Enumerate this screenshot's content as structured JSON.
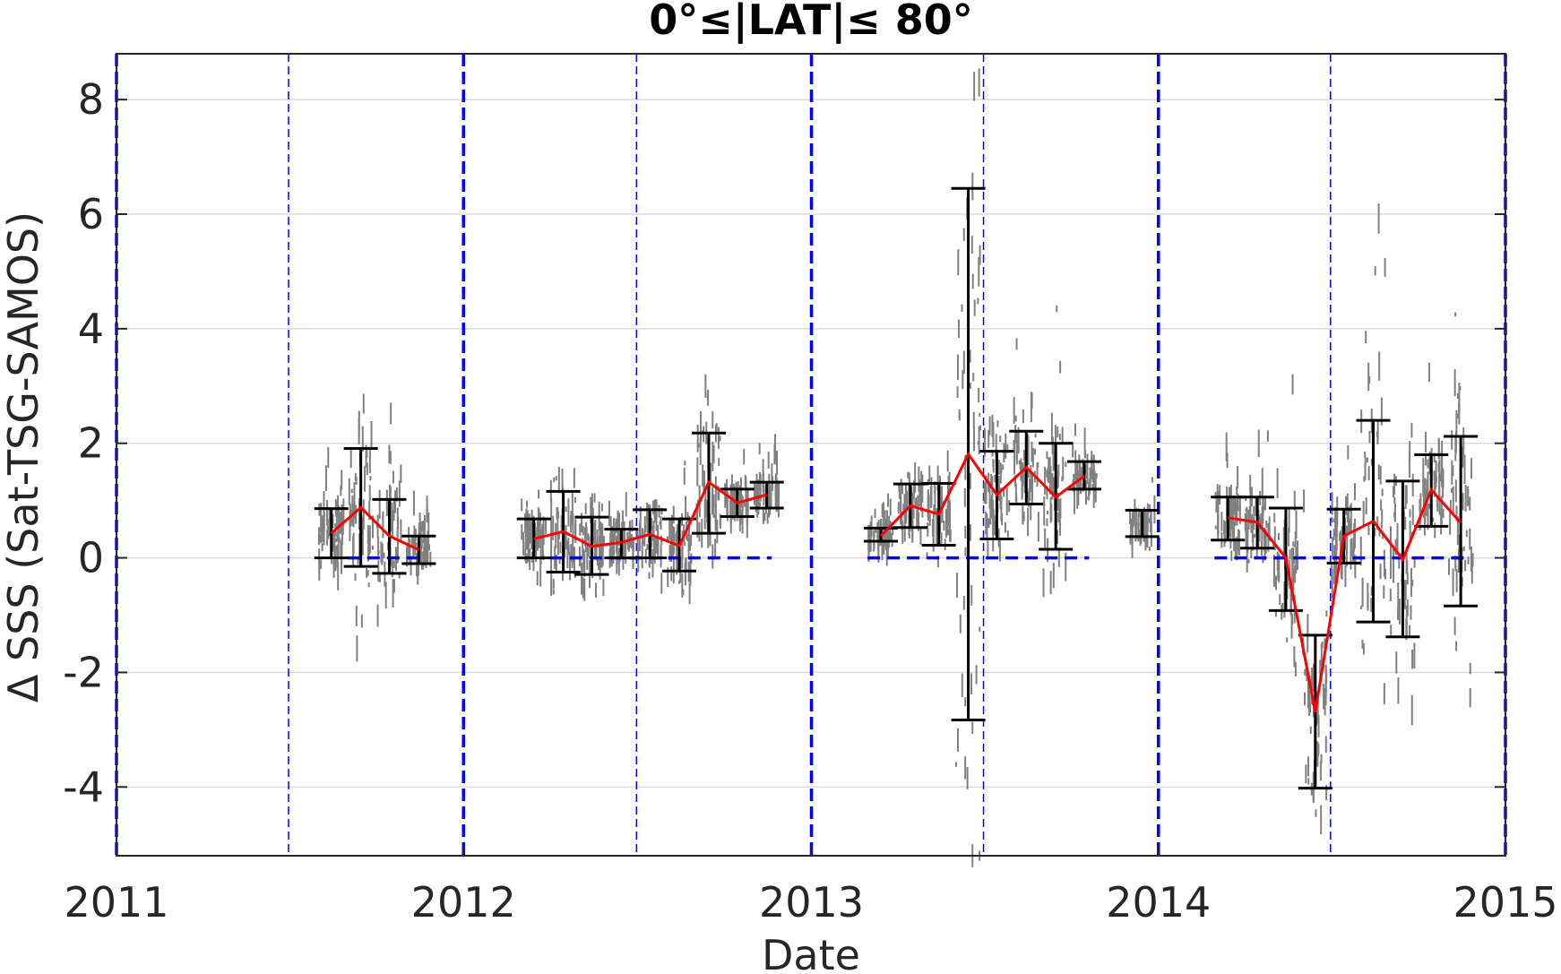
{
  "chart_data": {
    "type": "scatter",
    "title": "0°≤|LAT|≤ 80°",
    "xlabel": "Date",
    "ylabel": "Δ SSS (Sat-TSG-SAMOS)",
    "xlim": [
      "2011-01-01",
      "2015-01-01"
    ],
    "ylim": [
      -5.2,
      8.8
    ],
    "x_ticks": [
      2011,
      2012,
      2013,
      2014,
      2015
    ],
    "y_ticks": [
      -4,
      -2,
      0,
      2,
      4,
      6,
      8
    ],
    "grid": "horizontal",
    "year_lines": [
      "2011-01-01",
      "2012-01-01",
      "2013-01-01",
      "2014-01-01",
      "2015-01-01"
    ],
    "midyear_lines": [
      "2011-07-01",
      "2012-07-01",
      "2013-07-01",
      "2014-07-01"
    ],
    "colors": {
      "scatter": "#808080",
      "mean_line": "#ff0000",
      "error_bars": "#000000",
      "zero_line": "#0000ff",
      "year_lines": "#0000ff",
      "grid": "#dcdcdc"
    },
    "zero_segments": [
      [
        "2011-09-01",
        "2011-11-20"
      ],
      [
        "2012-04-01",
        "2012-11-20"
      ],
      [
        "2013-03-01",
        "2013-10-20"
      ],
      [
        "2014-03-01",
        "2014-11-20"
      ]
    ],
    "series": [
      {
        "name": "",
        "x": [
          "2011-08-15",
          "2011-09-15",
          "2011-10-15",
          "2011-11-15"
        ],
        "y": [
          0.43,
          0.88,
          0.38,
          0.14
        ],
        "low": [
          0.0,
          -0.15,
          -0.27,
          -0.1
        ],
        "high": [
          0.86,
          1.91,
          1.02,
          0.38
        ]
      },
      {
        "name": "",
        "x": [
          "2012-03-15",
          "2012-04-15",
          "2012-05-15",
          "2012-06-15",
          "2012-07-15",
          "2012-08-15",
          "2012-09-15",
          "2012-10-15",
          "2012-11-15"
        ],
        "y": [
          0.33,
          0.46,
          0.2,
          0.27,
          0.41,
          0.21,
          1.32,
          0.96,
          1.1
        ],
        "low": [
          0.0,
          -0.25,
          -0.29,
          0.0,
          0.0,
          -0.23,
          0.43,
          0.72,
          0.87
        ],
        "high": [
          0.68,
          1.16,
          0.71,
          0.5,
          0.84,
          0.68,
          2.18,
          1.2,
          1.32
        ]
      },
      {
        "name": "",
        "x": [
          "2013-03-15",
          "2013-04-15",
          "2013-05-15",
          "2013-06-15",
          "2013-07-15",
          "2013-08-15",
          "2013-09-15",
          "2013-10-15"
        ],
        "y": [
          0.38,
          0.91,
          0.76,
          1.81,
          1.1,
          1.58,
          1.06,
          1.43
        ],
        "low": [
          0.29,
          0.53,
          0.22,
          -2.83,
          0.33,
          0.94,
          0.15,
          1.2
        ],
        "high": [
          0.52,
          1.29,
          1.3,
          6.45,
          1.86,
          2.21,
          2.0,
          1.68
        ]
      },
      {
        "name": "",
        "x": [
          "2013-12-15"
        ],
        "y": [
          0.58
        ],
        "low": [
          0.37
        ],
        "high": [
          0.83
        ]
      },
      {
        "name": "",
        "x": [
          "2014-03-15",
          "2014-04-15",
          "2014-05-15",
          "2014-06-15",
          "2014-07-15",
          "2014-08-15",
          "2014-09-15",
          "2014-10-15",
          "2014-11-15"
        ],
        "y": [
          0.7,
          0.62,
          0.0,
          -2.69,
          0.38,
          0.64,
          -0.03,
          1.19,
          0.61
        ],
        "low": [
          0.31,
          0.17,
          -0.92,
          -4.02,
          -0.09,
          -1.12,
          -1.38,
          0.55,
          -0.84
        ],
        "high": [
          1.06,
          1.06,
          0.87,
          -1.35,
          0.85,
          2.4,
          1.34,
          1.8,
          2.12
        ]
      }
    ]
  }
}
